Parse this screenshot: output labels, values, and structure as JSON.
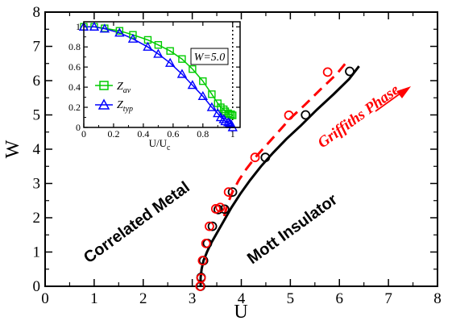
{
  "colors": {
    "metal_boundary": "#000000",
    "griffiths_boundary": "#ff0000",
    "zav": "#00cc00",
    "ztyp": "#0000ff"
  },
  "chart_data": [
    {
      "type": "line",
      "xlabel": "U",
      "ylabel": "W",
      "xlim": [
        0,
        8
      ],
      "ylim": [
        0,
        8
      ],
      "xticks": [
        "0",
        "1",
        "2",
        "3",
        "4",
        "5",
        "6",
        "7",
        "8"
      ],
      "yticks": [
        "0",
        "1",
        "2",
        "3",
        "4",
        "5",
        "6",
        "7",
        "8"
      ],
      "annotations": {
        "correlated_metal": "Correlated Metal",
        "mott_insulator": "Mott Insulator",
        "griffiths_phase": "Griffiths Phase"
      },
      "series": [
        {
          "color": "#000000",
          "line": "solid",
          "marker": "circle",
          "curve": {
            "x": [
              3.17,
              3.17,
              3.19,
              3.23,
              3.3,
              3.38,
              3.5,
              3.64,
              3.8,
              3.98,
              4.18,
              4.4,
              4.65,
              4.92,
              5.22,
              5.54,
              5.88,
              6.2,
              6.4
            ],
            "y": [
              0.0,
              0.25,
              0.5,
              0.75,
              1.0,
              1.25,
              1.55,
              1.9,
              2.3,
              2.7,
              3.1,
              3.5,
              3.9,
              4.3,
              4.7,
              5.15,
              5.6,
              6.05,
              6.42
            ]
          },
          "points": {
            "x": [
              3.17,
              3.18,
              3.23,
              3.31,
              3.41,
              3.53,
              3.66,
              3.82,
              4.49,
              5.31,
              6.21
            ],
            "y": [
              0.0,
              0.26,
              0.75,
              1.25,
              1.75,
              2.24,
              2.25,
              2.75,
              3.76,
              5.0,
              6.27
            ]
          }
        },
        {
          "color": "#ff0000",
          "line": "dashed",
          "marker": "circle",
          "curve": {
            "x": [
              3.65,
              3.72,
              3.82,
              3.95,
              4.1,
              4.28,
              4.5,
              4.75,
              5.0,
              5.3,
              5.62,
              5.95,
              6.15
            ],
            "y": [
              2.05,
              2.4,
              2.75,
              3.1,
              3.42,
              3.75,
              4.1,
              4.5,
              4.9,
              5.3,
              5.75,
              6.2,
              6.55
            ]
          },
          "points": {
            "x": [
              3.16,
              3.18,
              3.21,
              3.28,
              3.35,
              3.48,
              3.57,
              3.74,
              4.28,
              4.97,
              5.76
            ],
            "y": [
              0.0,
              0.24,
              0.75,
              1.25,
              1.75,
              2.26,
              2.3,
              2.75,
              3.76,
              4.99,
              6.25
            ]
          }
        }
      ]
    },
    {
      "type": "line",
      "xlabel": "U/U",
      "xlabel_sub": "c",
      "xlim": [
        0,
        1.05
      ],
      "ylim": [
        0,
        1.05
      ],
      "xticks": [
        "0",
        "0.2",
        "0.4",
        "0.6",
        "0.8",
        "1"
      ],
      "yticks": [
        "0",
        "0.2",
        "0.4",
        "0.6",
        "0.8",
        "1"
      ],
      "box_label": "W=5.0",
      "vertical_dotted_line_x": 1.0,
      "series": [
        {
          "name": "Z",
          "subscript": "av",
          "color": "#00cc00",
          "marker": "square",
          "x": [
            0.0,
            0.07,
            0.14,
            0.24,
            0.33,
            0.43,
            0.5,
            0.58,
            0.66,
            0.73,
            0.8,
            0.86,
            0.9,
            0.92,
            0.94,
            0.95,
            0.97,
            0.98,
            0.99,
            1.0
          ],
          "y": [
            1.0,
            1.0,
            0.985,
            0.96,
            0.92,
            0.87,
            0.82,
            0.76,
            0.68,
            0.58,
            0.46,
            0.33,
            0.24,
            0.2,
            0.18,
            0.16,
            0.14,
            0.13,
            0.13,
            0.12
          ]
        },
        {
          "name": "Z",
          "subscript": "typ",
          "color": "#0000ff",
          "marker": "triangle",
          "x": [
            0.0,
            0.07,
            0.14,
            0.24,
            0.33,
            0.43,
            0.5,
            0.58,
            0.66,
            0.73,
            0.8,
            0.86,
            0.9,
            0.92,
            0.94,
            0.95,
            0.97,
            0.98,
            0.99,
            1.0
          ],
          "y": [
            1.0,
            1.0,
            0.98,
            0.94,
            0.88,
            0.8,
            0.73,
            0.64,
            0.53,
            0.42,
            0.31,
            0.2,
            0.14,
            0.1,
            0.08,
            0.06,
            0.05,
            0.04,
            0.03,
            0.0
          ]
        }
      ]
    }
  ]
}
